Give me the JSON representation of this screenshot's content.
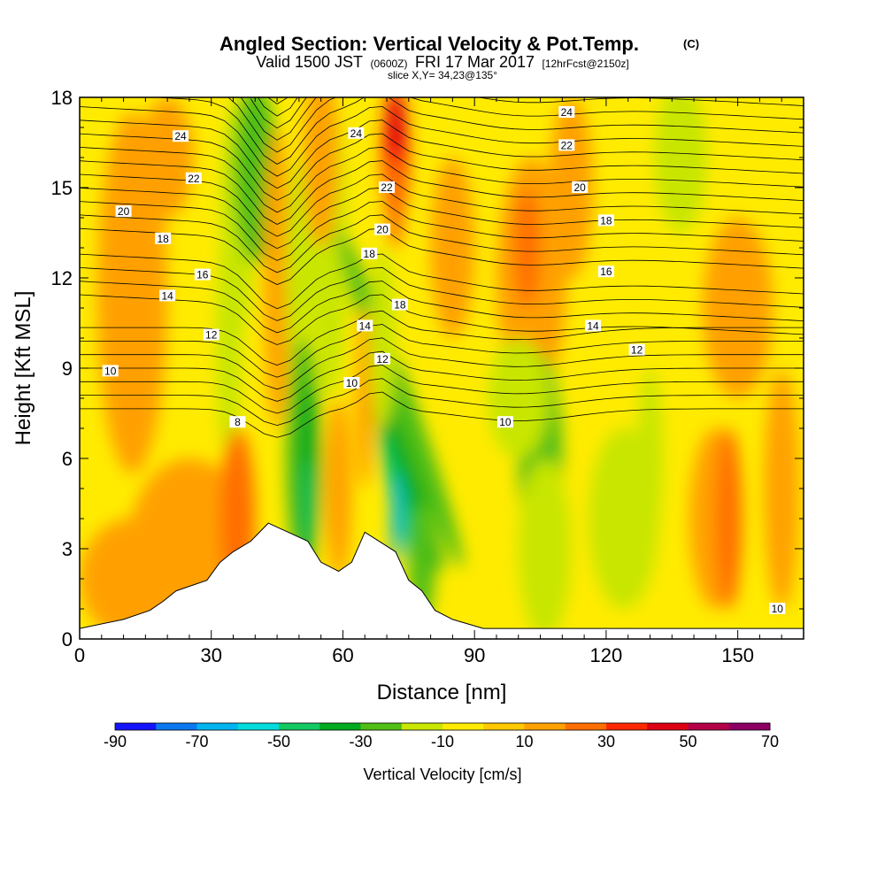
{
  "chart_data": {
    "type": "heatmap",
    "title": "Angled Section: Vertical Velocity & Pot.Temp.",
    "title_units": "(C)",
    "subtitle_main": "Valid 1500 JST",
    "subtitle_utc": "(0600Z)",
    "subtitle_date": "FRI 17 Mar 2017",
    "subtitle_fcst": "[12hrFcst@2150z]",
    "slice_label": "slice X,Y= 34,23@135°",
    "xlabel": "Distance [nm]",
    "ylabel": "Height [Kft MSL]",
    "xlim": [
      0,
      165
    ],
    "ylim": [
      0,
      18
    ],
    "x_ticks": [
      "0",
      "30",
      "60",
      "90",
      "120",
      "150"
    ],
    "y_ticks": [
      "0",
      "3",
      "6",
      "9",
      "12",
      "15",
      "18"
    ],
    "colorbar": {
      "label": "Vertical Velocity [cm/s]",
      "tick_labels": [
        "-90",
        "-70",
        "-50",
        "-30",
        "-10",
        "10",
        "30",
        "50",
        "70"
      ],
      "bins": [
        -90,
        -80,
        -70,
        -60,
        -50,
        -40,
        -30,
        -20,
        -10,
        0,
        10,
        20,
        30,
        40,
        50,
        60,
        70
      ],
      "colors": [
        "#1414ff",
        "#0a78f0",
        "#00b4f0",
        "#00dcdc",
        "#14c864",
        "#00aa1e",
        "#50be14",
        "#c8e600",
        "#ffeb00",
        "#ffc800",
        "#ffa000",
        "#ff6e00",
        "#ff2800",
        "#dc0014",
        "#b40046",
        "#8c0064"
      ]
    },
    "contour_levels": [
      8,
      10,
      12,
      14,
      16,
      18,
      20,
      22,
      24
    ],
    "contour_labels": [
      {
        "text": "24",
        "x": 23,
        "y": 16.7
      },
      {
        "text": "22",
        "x": 26,
        "y": 15.3
      },
      {
        "text": "20",
        "x": 10,
        "y": 14.2
      },
      {
        "text": "18",
        "x": 19,
        "y": 13.3
      },
      {
        "text": "16",
        "x": 28,
        "y": 12.1
      },
      {
        "text": "14",
        "x": 20,
        "y": 11.4
      },
      {
        "text": "12",
        "x": 30,
        "y": 10.1
      },
      {
        "text": "10",
        "x": 7,
        "y": 8.9
      },
      {
        "text": "8",
        "x": 36,
        "y": 7.2
      },
      {
        "text": "24",
        "x": 63,
        "y": 16.8
      },
      {
        "text": "22",
        "x": 70,
        "y": 15.0
      },
      {
        "text": "20",
        "x": 69,
        "y": 13.6
      },
      {
        "text": "18",
        "x": 66,
        "y": 12.8
      },
      {
        "text": "18",
        "x": 73,
        "y": 11.1
      },
      {
        "text": "14",
        "x": 65,
        "y": 10.4
      },
      {
        "text": "12",
        "x": 69,
        "y": 9.3
      },
      {
        "text": "10",
        "x": 62,
        "y": 8.5
      },
      {
        "text": "24",
        "x": 111,
        "y": 17.5
      },
      {
        "text": "22",
        "x": 111,
        "y": 16.4
      },
      {
        "text": "20",
        "x": 114,
        "y": 15.0
      },
      {
        "text": "18",
        "x": 120,
        "y": 13.9
      },
      {
        "text": "16",
        "x": 120,
        "y": 12.2
      },
      {
        "text": "14",
        "x": 117,
        "y": 10.4
      },
      {
        "text": "12",
        "x": 127,
        "y": 9.6
      },
      {
        "text": "10",
        "x": 97,
        "y": 7.2
      },
      {
        "text": "10",
        "x": 159,
        "y": 1.0
      }
    ],
    "terrain": [
      {
        "x": 0,
        "y": 0.35
      },
      {
        "x": 10,
        "y": 0.65
      },
      {
        "x": 16,
        "y": 0.95
      },
      {
        "x": 19,
        "y": 1.25
      },
      {
        "x": 22,
        "y": 1.6
      },
      {
        "x": 29,
        "y": 1.95
      },
      {
        "x": 32,
        "y": 2.55
      },
      {
        "x": 35,
        "y": 2.9
      },
      {
        "x": 39,
        "y": 3.25
      },
      {
        "x": 43,
        "y": 3.85
      },
      {
        "x": 52,
        "y": 3.25
      },
      {
        "x": 55,
        "y": 2.55
      },
      {
        "x": 59,
        "y": 2.25
      },
      {
        "x": 62,
        "y": 2.55
      },
      {
        "x": 65,
        "y": 3.55
      },
      {
        "x": 72,
        "y": 2.9
      },
      {
        "x": 75,
        "y": 1.95
      },
      {
        "x": 78,
        "y": 1.6
      },
      {
        "x": 81,
        "y": 0.95
      },
      {
        "x": 85,
        "y": 0.65
      },
      {
        "x": 92,
        "y": 0.35
      },
      {
        "x": 165,
        "y": 0.35
      }
    ]
  }
}
